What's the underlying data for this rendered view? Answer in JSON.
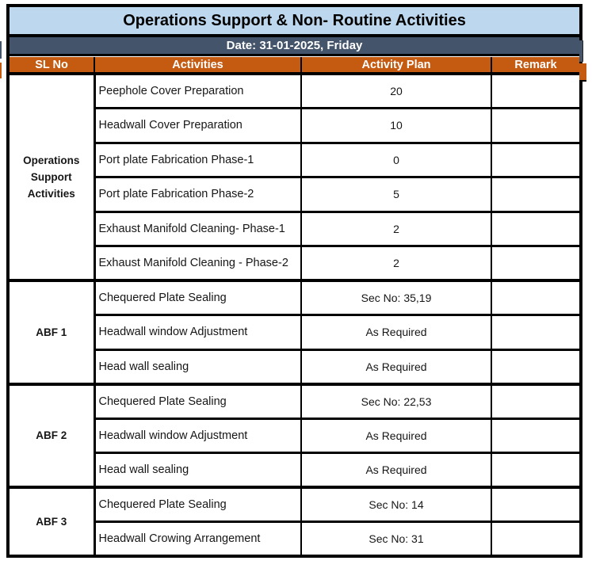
{
  "title": "Operations Support & Non- Routine Activities",
  "date_bar": "Date: 31-01-2025, Friday",
  "columns": [
    "SL No",
    "Activities",
    "Activity Plan",
    "Remark"
  ],
  "sections": [
    {
      "sl_no": "Operations Support Activities",
      "rows": [
        {
          "activity": "Peephole Cover Preparation",
          "plan": "20",
          "remark": ""
        },
        {
          "activity": "Headwall Cover Preparation",
          "plan": "10",
          "remark": ""
        },
        {
          "activity": "Port plate Fabrication Phase-1",
          "plan": "0",
          "remark": ""
        },
        {
          "activity": "Port plate Fabrication Phase-2",
          "plan": "5",
          "remark": ""
        },
        {
          "activity": "Exhaust Manifold Cleaning- Phase-1",
          "plan": "2",
          "remark": ""
        },
        {
          "activity": "Exhaust Manifold Cleaning - Phase-2",
          "plan": "2",
          "remark": ""
        }
      ]
    },
    {
      "sl_no": "ABF 1",
      "rows": [
        {
          "activity": "Chequered Plate Sealing",
          "plan": "Sec No: 35,19",
          "remark": ""
        },
        {
          "activity": "Headwall window Adjustment",
          "plan": "As Required",
          "remark": ""
        },
        {
          "activity": "Head wall sealing",
          "plan": "As Required",
          "remark": ""
        }
      ]
    },
    {
      "sl_no": "ABF 2",
      "rows": [
        {
          "activity": "Chequered Plate Sealing",
          "plan": "Sec No: 22,53",
          "remark": ""
        },
        {
          "activity": "Headwall window Adjustment",
          "plan": "As Required",
          "remark": ""
        },
        {
          "activity": "Head wall sealing",
          "plan": "As Required",
          "remark": ""
        }
      ]
    },
    {
      "sl_no": "ABF 3",
      "rows": [
        {
          "activity": "Chequered Plate Sealing",
          "plan": "Sec No: 14",
          "remark": ""
        },
        {
          "activity": "Headwall Crowing Arrangement",
          "plan": "Sec No: 31",
          "remark": ""
        }
      ]
    }
  ],
  "colors": {
    "title_bg": "#BDD7EE",
    "date_bg": "#44546A",
    "header_bg": "#C55A11",
    "border": "#000000",
    "header_text": "#FFFFFF",
    "body_text": "#161616"
  }
}
